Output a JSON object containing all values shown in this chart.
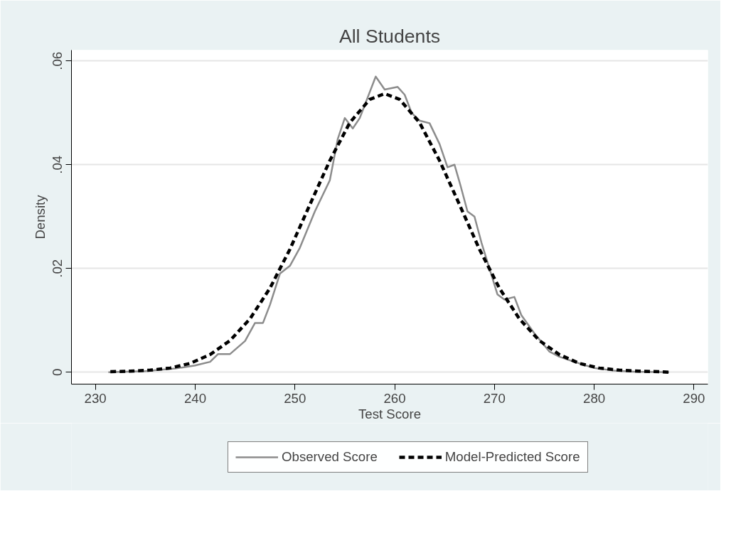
{
  "chart_data": {
    "type": "line",
    "title": "All Students",
    "xlabel": "Test Score",
    "ylabel": "Density",
    "xlim": [
      227.6,
      291.4
    ],
    "ylim": [
      -0.0023,
      0.0621
    ],
    "xticks": [
      230,
      240,
      250,
      260,
      270,
      280,
      290
    ],
    "yticks": [
      {
        "value": 0,
        "label": "0"
      },
      {
        "value": 0.02,
        "label": ".02"
      },
      {
        "value": 0.04,
        "label": ".04"
      },
      {
        "value": 0.06,
        "label": ".06"
      }
    ],
    "grid": "y",
    "legend": "bottom",
    "series": [
      {
        "name": "Observed Score",
        "color": "#8c8c8c",
        "line_style": "solid",
        "x": [
          231.3,
          235,
          238,
          240,
          241.5,
          242.3,
          243.5,
          245,
          246,
          246.8,
          247.5,
          248.5,
          249.5,
          250.5,
          252,
          253.5,
          254.3,
          255,
          255.8,
          256.5,
          257.5,
          258.1,
          259,
          260.3,
          261,
          261.7,
          262.5,
          263.5,
          264.5,
          265.3,
          266,
          266.6,
          267.3,
          268,
          268.7,
          269.5,
          270.3,
          271,
          272,
          272.7,
          274,
          275.5,
          276.5,
          278,
          280,
          282,
          284,
          287.5
        ],
        "values": [
          0,
          0.0002,
          0.0007,
          0.0013,
          0.002,
          0.0035,
          0.0035,
          0.006,
          0.0095,
          0.0095,
          0.013,
          0.019,
          0.0205,
          0.024,
          0.031,
          0.037,
          0.045,
          0.049,
          0.047,
          0.049,
          0.054,
          0.057,
          0.0545,
          0.055,
          0.0535,
          0.05,
          0.0485,
          0.048,
          0.044,
          0.0395,
          0.04,
          0.036,
          0.031,
          0.03,
          0.025,
          0.02,
          0.015,
          0.014,
          0.0145,
          0.011,
          0.0075,
          0.004,
          0.003,
          0.002,
          0.0008,
          0.0003,
          0.0001,
          0
        ]
      },
      {
        "name": "Model-Predicted Score",
        "color": "#000000",
        "line_style": "dashed",
        "x": [
          231.5,
          233.5,
          235.5,
          237.5,
          239.5,
          241.5,
          243.5,
          245.5,
          247.5,
          249.5,
          251.5,
          253.5,
          255.5,
          257.5,
          259,
          260.5,
          262.5,
          264.5,
          266.5,
          268.5,
          270.5,
          272.5,
          274.5,
          276.5,
          278.5,
          280.5,
          282.5,
          284.5,
          286.5,
          287.5
        ],
        "values": [
          0.0001,
          0.0002,
          0.0004,
          0.0008,
          0.0017,
          0.0034,
          0.0061,
          0.0103,
          0.0162,
          0.0237,
          0.0323,
          0.0408,
          0.0481,
          0.0526,
          0.0537,
          0.0526,
          0.0481,
          0.0408,
          0.0323,
          0.0237,
          0.0162,
          0.0103,
          0.0061,
          0.0034,
          0.0017,
          0.0008,
          0.0004,
          0.0002,
          0.0001,
          0
        ]
      }
    ]
  }
}
